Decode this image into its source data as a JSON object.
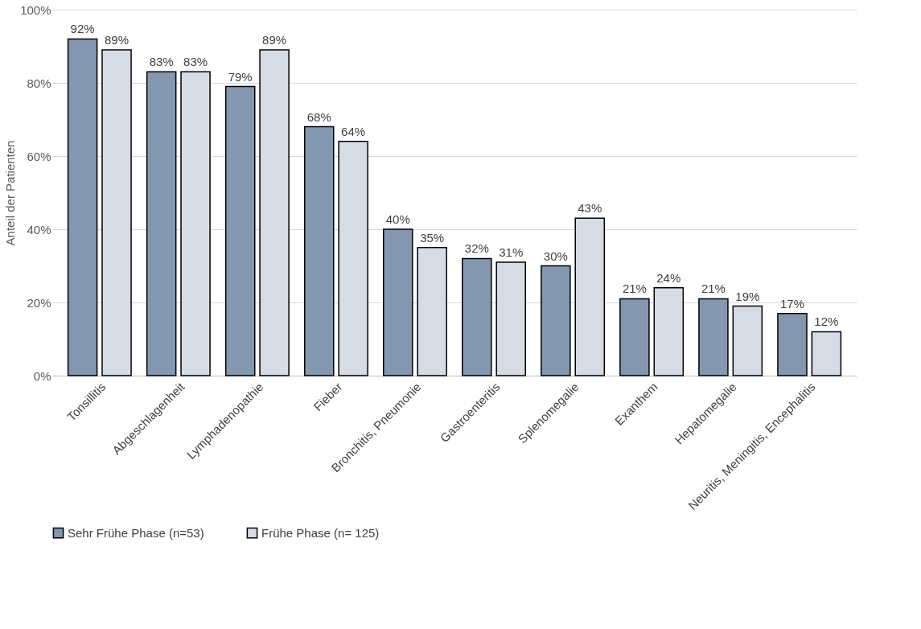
{
  "chart_data": {
    "type": "bar",
    "ylabel": "Anteil der Patienten",
    "categories": [
      "Tonsillitis",
      "Abgeschlagenheit",
      "Lymphadenopathie",
      "Fieber",
      "Bronchitis, Pneumonie",
      "Gastroenteritis",
      "Splenomegalie",
      "Exanthem",
      "Hepatomegalie",
      "Neuritis, Meningitis, Encephalitis"
    ],
    "series": [
      {
        "name": "Sehr Frühe Phase (n=53)",
        "color": "#8497b0",
        "values": [
          92,
          83,
          79,
          68,
          40,
          32,
          30,
          21,
          21,
          17
        ],
        "value_labels": [
          "92%",
          "83%",
          "79%",
          "68%",
          "40%",
          "32%",
          "30%",
          "21%",
          "21%",
          "17%"
        ]
      },
      {
        "name": "Frühe Phase (n= 125)",
        "color": "#d6dce5",
        "values": [
          89,
          83,
          89,
          64,
          35,
          31,
          43,
          24,
          19,
          12
        ],
        "value_labels": [
          "89%",
          "83%",
          "89%",
          "64%",
          "35%",
          "31%",
          "43%",
          "24%",
          "19%",
          "12%"
        ]
      }
    ],
    "ylim": [
      0,
      100
    ],
    "yticks": [
      {
        "value": 0,
        "label": "0%"
      },
      {
        "value": 20,
        "label": "20%"
      },
      {
        "value": 40,
        "label": "40%"
      },
      {
        "value": 60,
        "label": "60%"
      },
      {
        "value": 80,
        "label": "80%"
      },
      {
        "value": 100,
        "label": "100%"
      }
    ],
    "grid": "y",
    "legend": "bottom"
  }
}
